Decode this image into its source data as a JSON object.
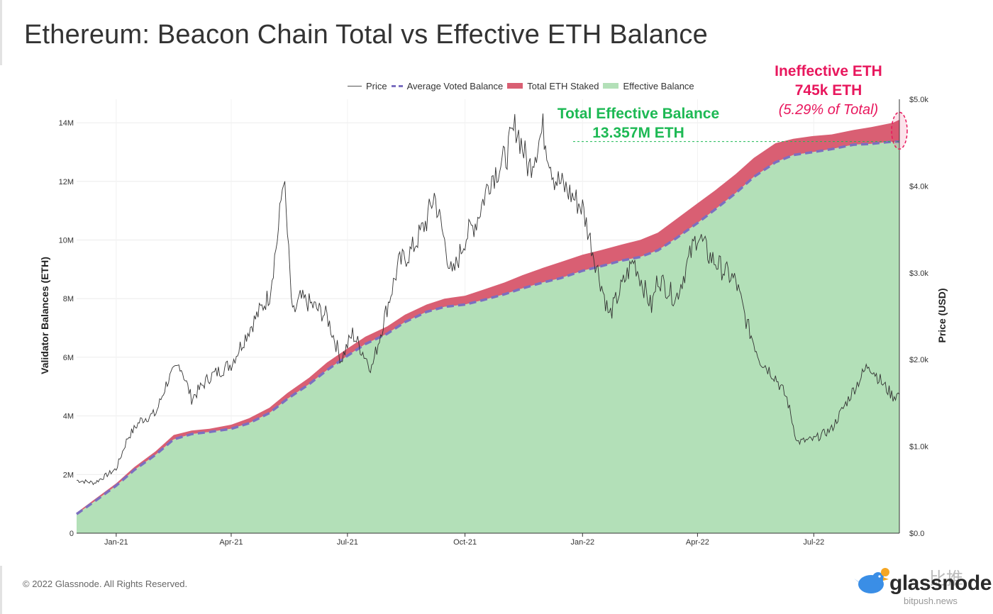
{
  "title": "Ethereum: Beacon Chain Total vs Effective ETH Balance",
  "legend": [
    {
      "label": "Price",
      "key": "price"
    },
    {
      "label": "Average Voted Balance",
      "key": "avg"
    },
    {
      "label": "Total ETH Staked",
      "key": "total"
    },
    {
      "label": "Effective Balance",
      "key": "eff"
    }
  ],
  "annotations": {
    "effective_line1": "Total Effective Balance",
    "effective_line2": "13.357M ETH",
    "ineffective_line1": "Ineffective ETH",
    "ineffective_line2": "745k ETH",
    "ineffective_line3": "(5.29% of Total)"
  },
  "footer": "© 2022 Glassnode. All Rights Reserved.",
  "logo": {
    "name": "glassnode",
    "cn": "比推",
    "sub": "bitpush.news"
  },
  "colors": {
    "effective_fill": "#b3e0b8",
    "total_fill": "#d95f73",
    "avg_line": "#7b6fc0",
    "price_line": "#333333",
    "effective_text": "#1db954",
    "ineffective_text": "#e8175d"
  },
  "chart_data": {
    "type": "area",
    "ylabel": "Validator Balances (ETH)",
    "y2label": "Price (USD)",
    "ylim": [
      0,
      14800000
    ],
    "y2lim": [
      0,
      5000
    ],
    "xlim": [
      "2020-12-01",
      "2022-09-06"
    ],
    "xticks": [
      "Jan-21",
      "Apr-21",
      "Jul-21",
      "Oct-21",
      "Jan-22",
      "Apr-22",
      "Jul-22"
    ],
    "xtick_dates": [
      "2021-01-01",
      "2021-04-01",
      "2021-07-01",
      "2021-10-01",
      "2022-01-01",
      "2022-04-01",
      "2022-07-01"
    ],
    "yticks": [
      0,
      2000000,
      4000000,
      6000000,
      8000000,
      10000000,
      12000000,
      14000000
    ],
    "ytick_labels": [
      "0",
      "2M",
      "4M",
      "6M",
      "8M",
      "10M",
      "12M",
      "14M"
    ],
    "y2ticks": [
      0,
      1000,
      2000,
      3000,
      4000,
      5000
    ],
    "y2tick_labels": [
      "$0.0",
      "$1.0k",
      "$2.0k",
      "$3.0k",
      "$4.0k",
      "$5.0k"
    ],
    "grid": true,
    "legend_position": "top",
    "series": [
      {
        "name": "Total ETH Staked",
        "x": [
          "2020-12-01",
          "2020-12-15",
          "2021-01-01",
          "2021-01-15",
          "2021-02-01",
          "2021-02-15",
          "2021-03-01",
          "2021-03-15",
          "2021-04-01",
          "2021-04-15",
          "2021-05-01",
          "2021-05-15",
          "2021-06-01",
          "2021-06-15",
          "2021-07-01",
          "2021-07-15",
          "2021-08-01",
          "2021-08-15",
          "2021-09-01",
          "2021-09-15",
          "2021-10-01",
          "2021-10-15",
          "2021-11-01",
          "2021-11-15",
          "2021-12-01",
          "2021-12-15",
          "2022-01-01",
          "2022-01-15",
          "2022-02-01",
          "2022-02-15",
          "2022-03-01",
          "2022-03-15",
          "2022-04-01",
          "2022-04-15",
          "2022-05-01",
          "2022-05-15",
          "2022-06-01",
          "2022-06-15",
          "2022-07-01",
          "2022-07-15",
          "2022-08-01",
          "2022-08-15",
          "2022-09-01",
          "2022-09-06"
        ],
        "values": [
          700000,
          1150000,
          1700000,
          2250000,
          2800000,
          3350000,
          3500000,
          3560000,
          3700000,
          3920000,
          4280000,
          4780000,
          5300000,
          5820000,
          6300000,
          6700000,
          7050000,
          7450000,
          7800000,
          8000000,
          8100000,
          8300000,
          8550000,
          8800000,
          9050000,
          9250000,
          9500000,
          9650000,
          9850000,
          10000000,
          10250000,
          10700000,
          11250000,
          11700000,
          12250000,
          12800000,
          13300000,
          13450000,
          13550000,
          13600000,
          13750000,
          13850000,
          14000000,
          14100000
        ]
      },
      {
        "name": "Effective Balance",
        "x": [
          "2020-12-01",
          "2020-12-15",
          "2021-01-01",
          "2021-01-15",
          "2021-02-01",
          "2021-02-15",
          "2021-03-01",
          "2021-03-15",
          "2021-04-01",
          "2021-04-15",
          "2021-05-01",
          "2021-05-15",
          "2021-06-01",
          "2021-06-15",
          "2021-07-01",
          "2021-07-15",
          "2021-08-01",
          "2021-08-15",
          "2021-09-01",
          "2021-09-15",
          "2021-10-01",
          "2021-10-15",
          "2021-11-01",
          "2021-11-15",
          "2021-12-01",
          "2021-12-15",
          "2022-01-01",
          "2022-01-15",
          "2022-02-01",
          "2022-02-15",
          "2022-03-01",
          "2022-03-15",
          "2022-04-01",
          "2022-04-15",
          "2022-05-01",
          "2022-05-15",
          "2022-06-01",
          "2022-06-15",
          "2022-07-01",
          "2022-07-15",
          "2022-08-01",
          "2022-08-15",
          "2022-09-01",
          "2022-09-06"
        ],
        "values": [
          650000,
          1080000,
          1620000,
          2150000,
          2680000,
          3200000,
          3380000,
          3450000,
          3560000,
          3750000,
          4100000,
          4580000,
          5080000,
          5560000,
          6050000,
          6450000,
          6800000,
          7200000,
          7550000,
          7720000,
          7800000,
          7950000,
          8150000,
          8350000,
          8550000,
          8700000,
          8950000,
          9100000,
          9300000,
          9420000,
          9650000,
          10050000,
          10580000,
          11050000,
          11600000,
          12150000,
          12650000,
          12900000,
          13000000,
          13100000,
          13250000,
          13280000,
          13357000,
          13357000
        ]
      },
      {
        "name": "Average Voted Balance",
        "note": "dashed line tracking Effective Balance"
      },
      {
        "name": "Price",
        "axis": "right",
        "x": [
          "2020-12-01",
          "2020-12-15",
          "2021-01-01",
          "2021-01-10",
          "2021-01-20",
          "2021-02-01",
          "2021-02-10",
          "2021-02-20",
          "2021-03-01",
          "2021-03-15",
          "2021-04-01",
          "2021-04-15",
          "2021-05-01",
          "2021-05-08",
          "2021-05-12",
          "2021-05-19",
          "2021-05-25",
          "2021-06-01",
          "2021-06-15",
          "2021-06-26",
          "2021-07-05",
          "2021-07-20",
          "2021-08-01",
          "2021-08-10",
          "2021-08-20",
          "2021-09-01",
          "2021-09-07",
          "2021-09-21",
          "2021-10-01",
          "2021-10-10",
          "2021-10-21",
          "2021-11-01",
          "2021-11-10",
          "2021-11-20",
          "2021-12-01",
          "2021-12-10",
          "2021-12-20",
          "2022-01-01",
          "2022-01-10",
          "2022-01-22",
          "2022-02-01",
          "2022-02-10",
          "2022-02-24",
          "2022-03-01",
          "2022-03-15",
          "2022-04-01",
          "2022-04-10",
          "2022-04-20",
          "2022-05-01",
          "2022-05-10",
          "2022-05-20",
          "2022-06-01",
          "2022-06-10",
          "2022-06-18",
          "2022-07-01",
          "2022-07-15",
          "2022-08-01",
          "2022-08-13",
          "2022-08-25",
          "2022-09-01",
          "2022-09-06"
        ],
        "values": [
          610,
          580,
          740,
          1100,
          1300,
          1380,
          1750,
          1950,
          1550,
          1800,
          1950,
          2350,
          2750,
          3500,
          4150,
          2500,
          2700,
          2650,
          2500,
          2000,
          2300,
          1900,
          2600,
          3100,
          3250,
          3600,
          3900,
          2950,
          3400,
          3600,
          4100,
          4300,
          4700,
          4200,
          4650,
          4100,
          3950,
          3750,
          3200,
          2500,
          2850,
          3150,
          2600,
          2950,
          2700,
          3450,
          3200,
          3050,
          2900,
          2400,
          2000,
          1800,
          1550,
          1050,
          1080,
          1200,
          1650,
          1950,
          1700,
          1580,
          1600
        ]
      }
    ]
  }
}
